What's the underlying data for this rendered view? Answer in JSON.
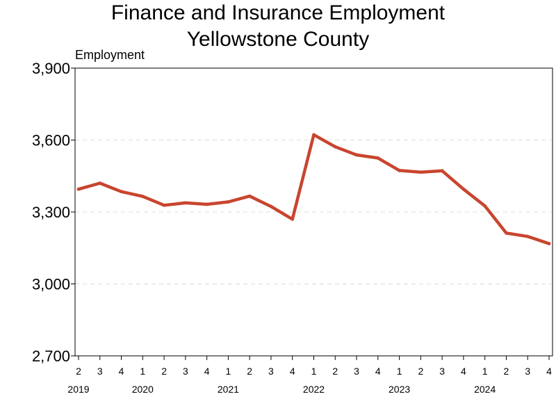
{
  "title": "Finance and Insurance Employment",
  "subtitle": "Yellowstone County",
  "chart_data": {
    "type": "line",
    "ylabel": "Employment",
    "ylim": [
      2700,
      3900
    ],
    "yticks": [
      2700,
      3000,
      3300,
      3600,
      3900
    ],
    "ytick_labels": [
      "2,700",
      "3,000",
      "3,300",
      "3,600",
      "3,900"
    ],
    "grid": "horizontal dashed",
    "line_color": "#c8452f",
    "x_quarters": [
      "2",
      "3",
      "4",
      "1",
      "2",
      "3",
      "4",
      "1",
      "2",
      "3",
      "4",
      "1",
      "2",
      "3",
      "4",
      "1",
      "2",
      "3",
      "4",
      "1",
      "2",
      "3",
      "4"
    ],
    "x_years": [
      {
        "label": "2019",
        "at_index": 0
      },
      {
        "label": "2020",
        "at_index": 3
      },
      {
        "label": "2021",
        "at_index": 7
      },
      {
        "label": "2022",
        "at_index": 11
      },
      {
        "label": "2023",
        "at_index": 15
      },
      {
        "label": "2024",
        "at_index": 19
      }
    ],
    "series": [
      {
        "values": [
          3395,
          3420,
          3385,
          3365,
          3328,
          3338,
          3332,
          3342,
          3366,
          3323,
          3270,
          3622,
          3572,
          3538,
          3525,
          3473,
          3466,
          3472,
          3395,
          3325,
          3212,
          3198,
          3168
        ]
      }
    ]
  }
}
